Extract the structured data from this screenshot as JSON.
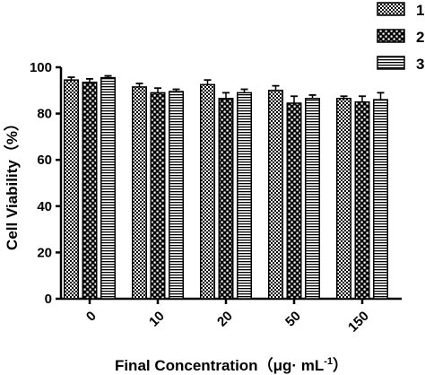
{
  "chart_data": {
    "type": "bar",
    "title": "",
    "xlabel": "Final Concentration（μg· mL",
    "xlabel_sup": "-1",
    "xlabel_close": "）",
    "ylabel": "Cell Viability（%）",
    "ylim": [
      0,
      100
    ],
    "yticks": [
      "0",
      "20",
      "40",
      "60",
      "80",
      "100"
    ],
    "categories": [
      "0",
      "10",
      "20",
      "50",
      "150"
    ],
    "series": [
      {
        "name": "1",
        "pattern": "checker",
        "values": [
          94.5,
          91.5,
          92.5,
          90.0,
          86.5
        ],
        "errors": [
          1.2,
          1.5,
          2.0,
          2.0,
          1.0
        ]
      },
      {
        "name": "2",
        "pattern": "dots",
        "values": [
          93.5,
          89.0,
          86.5,
          84.5,
          85.0
        ],
        "errors": [
          1.5,
          2.0,
          2.5,
          3.0,
          2.5
        ]
      },
      {
        "name": "3",
        "pattern": "stripes",
        "values": [
          95.5,
          89.5,
          89.0,
          86.5,
          86.0
        ],
        "errors": [
          0.8,
          1.0,
          1.5,
          1.5,
          3.0
        ]
      }
    ],
    "grid": false,
    "legend_position": "top-right",
    "bar_color": "#000000",
    "background": "#ffffff"
  }
}
